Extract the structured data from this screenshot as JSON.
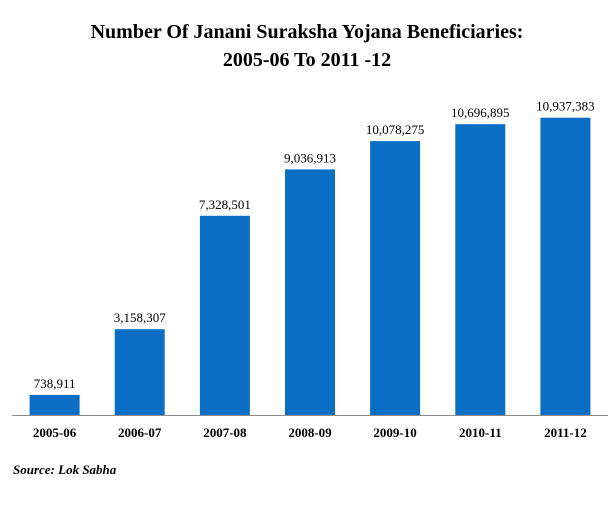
{
  "chart_data": {
    "type": "bar",
    "title_line1": "Number Of Janani Suraksha Yojana Beneficiaries:",
    "title_line2": "2005-06 To 2011 -12",
    "categories": [
      "2005-06",
      "2006-07",
      "2007-08",
      "2008-09",
      "2009-10",
      "2010-11",
      "2011-12"
    ],
    "values": [
      738911,
      3158307,
      7328501,
      9036913,
      10078275,
      10696895,
      10937383
    ],
    "value_labels": [
      "738,911",
      "3,158,307",
      "7,328,501",
      "9,036,913",
      "10,078,275",
      "10,696,895",
      "10,937,383"
    ],
    "xlabel": "",
    "ylabel": "",
    "ylim": [
      0,
      12000000
    ],
    "grid": false,
    "legend": "none",
    "bar_color": "#0a6ec4",
    "source": "Source: Lok Sabha"
  }
}
